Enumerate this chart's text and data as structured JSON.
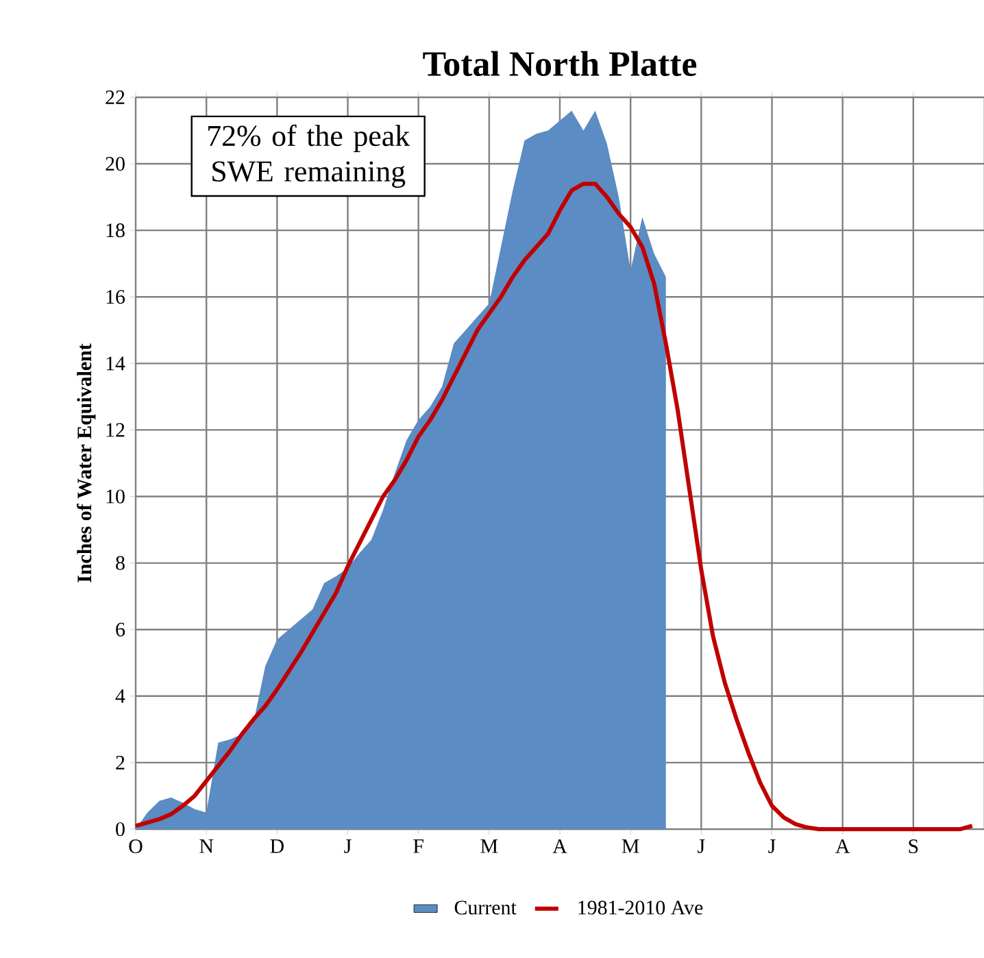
{
  "chart_data": {
    "type": "area",
    "title": "Total North Platte",
    "ylabel": "Inches of Water Equivalent",
    "annotations": [
      "72% of the peak SWE remaining"
    ],
    "categories": [
      "O",
      null,
      null,
      null,
      null,
      null,
      "N",
      null,
      null,
      null,
      null,
      null,
      "D",
      null,
      null,
      null,
      null,
      null,
      "J",
      null,
      null,
      null,
      null,
      null,
      "F",
      null,
      null,
      null,
      null,
      null,
      "M",
      null,
      null,
      null,
      null,
      null,
      "A",
      null,
      null,
      null,
      null,
      null,
      "M",
      null,
      null,
      null,
      null,
      null,
      "J",
      null,
      null,
      null,
      null,
      null,
      "J",
      null,
      null,
      null,
      null,
      null,
      "A",
      null,
      null,
      null,
      null,
      null,
      "S",
      null,
      null,
      null,
      null,
      null
    ],
    "ylim": [
      0,
      22
    ],
    "yticks": [
      0,
      2,
      4,
      6,
      8,
      10,
      12,
      14,
      16,
      18,
      20,
      22
    ],
    "grid": true,
    "legend": "bottom",
    "marker": "none",
    "series": [
      {
        "name": "Current",
        "type": "area",
        "color": "#5b8cc4",
        "values": [
          0,
          0.5,
          0.85,
          0.95,
          0.8,
          0.6,
          0.5,
          2.6,
          2.7,
          2.85,
          3.2,
          4.9,
          5.7,
          6.0,
          6.3,
          6.6,
          7.4,
          7.6,
          7.85,
          8.3,
          8.7,
          9.6,
          10.7,
          11.7,
          12.3,
          12.7,
          13.3,
          14.6,
          15.0,
          15.4,
          15.8,
          17.5,
          19.2,
          20.7,
          20.9,
          21.0,
          21.3,
          21.6,
          21.0,
          21.6,
          20.6,
          19.0,
          16.8,
          18.4,
          17.3,
          16.6,
          null,
          null,
          null,
          null,
          null,
          null,
          null,
          null,
          null,
          null,
          null,
          null,
          null,
          null,
          null,
          null,
          null,
          null,
          null,
          null,
          null,
          null,
          null,
          null,
          null,
          null
        ]
      },
      {
        "name": "1981-2010 Ave",
        "type": "line",
        "color": "#c00000",
        "line_style": "solid",
        "values": [
          0.1,
          0.2,
          0.3,
          0.45,
          0.7,
          1.0,
          1.45,
          1.9,
          2.35,
          2.85,
          3.3,
          3.7,
          4.2,
          4.75,
          5.3,
          5.9,
          6.5,
          7.1,
          7.9,
          8.6,
          9.3,
          10.0,
          10.5,
          11.1,
          11.8,
          12.3,
          12.9,
          13.6,
          14.3,
          15.0,
          15.5,
          16.0,
          16.6,
          17.1,
          17.5,
          17.9,
          18.6,
          19.2,
          19.4,
          19.4,
          19.0,
          18.5,
          18.1,
          17.5,
          16.4,
          14.6,
          12.6,
          10.2,
          7.8,
          5.8,
          4.4,
          3.3,
          2.3,
          1.4,
          0.7,
          0.35,
          0.15,
          0.05,
          0,
          0,
          0,
          0,
          0,
          0,
          0,
          0,
          0,
          0,
          0,
          0,
          0,
          0.1
        ]
      }
    ]
  }
}
